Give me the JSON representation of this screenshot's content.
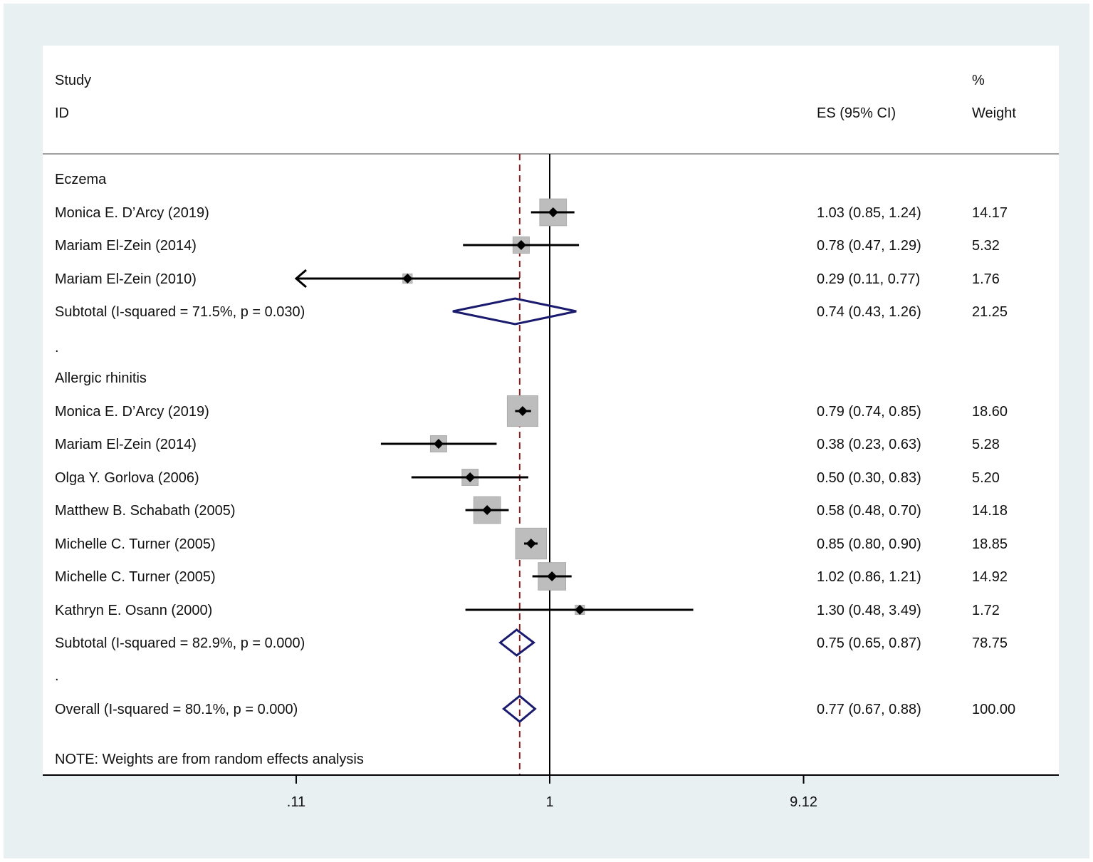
{
  "chart_data": {
    "type": "forest",
    "scale": "log",
    "null_value": 1,
    "overall_line_value": 0.77,
    "axis_ticks": [
      {
        "value": 0.11,
        "label": ".11"
      },
      {
        "value": 1,
        "label": "1"
      },
      {
        "value": 9.12,
        "label": "9.12"
      }
    ],
    "xlim": [
      0.11,
      9.12
    ],
    "headers": {
      "study_line1": "Study",
      "study_line2": "ID",
      "es": "ES (95% CI)",
      "weight_line1": "%",
      "weight_line2": "Weight"
    },
    "rows": [
      {
        "kind": "group",
        "label": "Eczema"
      },
      {
        "kind": "study",
        "label": "Monica E. D’Arcy (2019)",
        "es": 1.03,
        "lo": 0.85,
        "hi": 1.24,
        "es_text": "1.03 (0.85, 1.24)",
        "weight": "14.17"
      },
      {
        "kind": "study",
        "label": "Mariam El-Zein (2014)",
        "es": 0.78,
        "lo": 0.47,
        "hi": 1.29,
        "es_text": "0.78 (0.47, 1.29)",
        "weight": "5.32"
      },
      {
        "kind": "study",
        "label": "Mariam El-Zein (2010)",
        "es": 0.29,
        "lo": 0.11,
        "hi": 0.77,
        "es_text": "0.29 (0.11, 0.77)",
        "weight": "1.76",
        "clipped_left": true
      },
      {
        "kind": "subtotal",
        "label": "Subtotal  (I-squared = 71.5%, p = 0.030)",
        "es": 0.74,
        "lo": 0.43,
        "hi": 1.26,
        "es_text": "0.74 (0.43, 1.26)",
        "weight": "21.25"
      },
      {
        "kind": "spacer",
        "label": "."
      },
      {
        "kind": "group",
        "label": "Allergic rhinitis"
      },
      {
        "kind": "study",
        "label": "Monica E. D’Arcy (2019)",
        "es": 0.79,
        "lo": 0.74,
        "hi": 0.85,
        "es_text": "0.79 (0.74, 0.85)",
        "weight": "18.60"
      },
      {
        "kind": "study",
        "label": "Mariam El-Zein (2014)",
        "es": 0.38,
        "lo": 0.23,
        "hi": 0.63,
        "es_text": "0.38 (0.23, 0.63)",
        "weight": "5.28"
      },
      {
        "kind": "study",
        "label": "Olga Y. Gorlova (2006)",
        "es": 0.5,
        "lo": 0.3,
        "hi": 0.83,
        "es_text": "0.50 (0.30, 0.83)",
        "weight": "5.20"
      },
      {
        "kind": "study",
        "label": "Matthew B. Schabath (2005)",
        "es": 0.58,
        "lo": 0.48,
        "hi": 0.7,
        "es_text": "0.58 (0.48, 0.70)",
        "weight": "14.18"
      },
      {
        "kind": "study",
        "label": "Michelle C. Turner (2005)",
        "es": 0.85,
        "lo": 0.8,
        "hi": 0.9,
        "es_text": "0.85 (0.80, 0.90)",
        "weight": "18.85"
      },
      {
        "kind": "study",
        "label": "Michelle C. Turner (2005)",
        "es": 1.02,
        "lo": 0.86,
        "hi": 1.21,
        "es_text": "1.02 (0.86, 1.21)",
        "weight": "14.92"
      },
      {
        "kind": "study",
        "label": "Kathryn E. Osann (2000)",
        "es": 1.3,
        "lo": 0.48,
        "hi": 3.49,
        "es_text": "1.30 (0.48, 3.49)",
        "weight": "1.72"
      },
      {
        "kind": "subtotal",
        "label": "Subtotal  (I-squared = 82.9%, p = 0.000)",
        "es": 0.75,
        "lo": 0.65,
        "hi": 0.87,
        "es_text": "0.75 (0.65, 0.87)",
        "weight": "78.75"
      },
      {
        "kind": "spacer",
        "label": "."
      },
      {
        "kind": "overall",
        "label": "Overall  (I-squared = 80.1%, p = 0.000)",
        "es": 0.77,
        "lo": 0.67,
        "hi": 0.88,
        "es_text": "0.77 (0.67, 0.88)",
        "weight": "100.00"
      }
    ],
    "note": "NOTE: Weights are from random effects analysis",
    "colors": {
      "background": "#e9f0f2",
      "panel": "#ffffff",
      "box": "#bdbdbd",
      "diamond": "#1a1a6e",
      "overall_line": "#8b1a1a",
      "line": "#000000"
    }
  }
}
